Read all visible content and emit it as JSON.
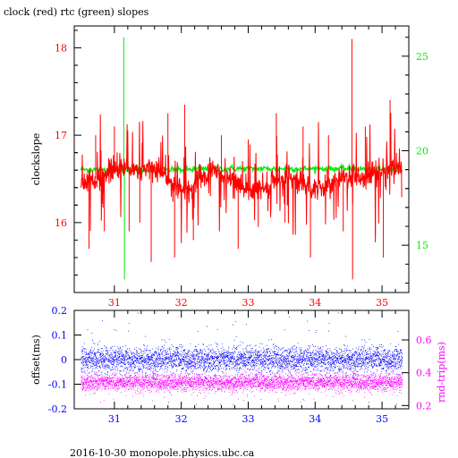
{
  "header": {
    "title": "clock (red) rtc (green) slopes",
    "footer": "2016-10-30  monopole.physics.ubc.ca"
  },
  "colors": {
    "clock": "#ff0000",
    "rtc": "#00ee00",
    "offset": "#0000ff",
    "roundtrip": "#ff00ff",
    "axis": "#000000"
  },
  "chart_data": [
    {
      "type": "line",
      "title": "clock (red) rtc (green) slopes",
      "xlabel": "",
      "ylabel": "clockslope",
      "y2label": "",
      "xlim": [
        30.4,
        35.4
      ],
      "ylim": [
        15.2,
        18.25
      ],
      "y2lim": [
        12.5,
        26.6
      ],
      "xticks": [
        "31",
        "32",
        "33",
        "34",
        "35"
      ],
      "yticks": [
        "16",
        "17",
        "18"
      ],
      "y2ticks": [
        "15",
        "20",
        "25"
      ],
      "grid": false,
      "series": [
        {
          "name": "clock",
          "axis": "left",
          "points": [
            [
              30.5,
              16.45
            ],
            [
              30.7,
              16.5
            ],
            [
              30.9,
              16.55
            ],
            [
              31.1,
              16.62
            ],
            [
              31.3,
              16.6
            ],
            [
              31.5,
              16.62
            ],
            [
              31.7,
              16.6
            ],
            [
              31.9,
              16.42
            ],
            [
              32.1,
              16.38
            ],
            [
              32.3,
              16.5
            ],
            [
              32.5,
              16.6
            ],
            [
              32.7,
              16.5
            ],
            [
              32.9,
              16.42
            ],
            [
              33.1,
              16.35
            ],
            [
              33.3,
              16.45
            ],
            [
              33.5,
              16.5
            ],
            [
              33.7,
              16.5
            ],
            [
              33.9,
              16.42
            ],
            [
              34.1,
              16.4
            ],
            [
              34.3,
              16.5
            ],
            [
              34.5,
              16.55
            ],
            [
              34.7,
              16.52
            ],
            [
              34.9,
              16.58
            ],
            [
              35.1,
              16.6
            ],
            [
              35.25,
              16.6
            ]
          ],
          "spikes": [
            [
              30.62,
              15.7
            ],
            [
              30.72,
              17.0
            ],
            [
              30.85,
              15.9
            ],
            [
              31.0,
              17.1
            ],
            [
              31.22,
              15.9
            ],
            [
              31.38,
              16.0
            ],
            [
              31.55,
              15.55
            ],
            [
              31.8,
              17.25
            ],
            [
              31.9,
              15.6
            ],
            [
              32.05,
              17.35
            ],
            [
              32.18,
              15.8
            ],
            [
              32.6,
              17.0
            ],
            [
              32.85,
              15.7
            ],
            [
              33.0,
              16.95
            ],
            [
              33.15,
              15.95
            ],
            [
              33.42,
              17.25
            ],
            [
              33.55,
              16.0
            ],
            [
              33.82,
              17.1
            ],
            [
              33.93,
              15.6
            ],
            [
              34.2,
              17.0
            ],
            [
              34.42,
              15.9
            ],
            [
              34.55,
              18.1
            ],
            [
              34.56,
              15.35
            ],
            [
              34.75,
              17.1
            ],
            [
              34.9,
              15.85
            ],
            [
              35.02,
              15.6
            ],
            [
              35.12,
              17.4
            ]
          ]
        },
        {
          "name": "rtc",
          "axis": "right",
          "points": [
            [
              30.5,
              19.0
            ],
            [
              31.0,
              19.0
            ],
            [
              31.5,
              19.0
            ],
            [
              32.0,
              19.0
            ],
            [
              32.5,
              19.05
            ],
            [
              33.0,
              19.05
            ],
            [
              33.5,
              19.05
            ],
            [
              34.0,
              19.05
            ],
            [
              34.5,
              19.05
            ],
            [
              35.0,
              19.0
            ],
            [
              35.3,
              19.0
            ]
          ],
          "spikes": [
            [
              31.14,
              26.0
            ],
            [
              31.15,
              13.2
            ]
          ]
        }
      ]
    },
    {
      "type": "scatter",
      "xlabel": "",
      "ylabel": "offset(ms)",
      "y2label": "rnd-trip(ms)",
      "xlim": [
        30.4,
        35.4
      ],
      "ylim": [
        -0.2,
        0.2
      ],
      "y2lim": [
        0.18,
        0.78
      ],
      "xticks": [
        "31",
        "32",
        "33",
        "34",
        "35"
      ],
      "yticks": [
        "0.2",
        "0.1",
        "0",
        "-0.1",
        "-0.2"
      ],
      "y2ticks": [
        "0.6",
        "0.4",
        "0.2"
      ],
      "grid": false,
      "series": [
        {
          "name": "offset",
          "axis": "left",
          "center": 0.0,
          "spread": 0.05,
          "range": [
            -0.07,
            0.06
          ]
        },
        {
          "name": "roundtrip",
          "axis": "right",
          "center": 0.34,
          "spread": 0.05,
          "range": [
            0.26,
            0.44
          ]
        }
      ]
    }
  ]
}
